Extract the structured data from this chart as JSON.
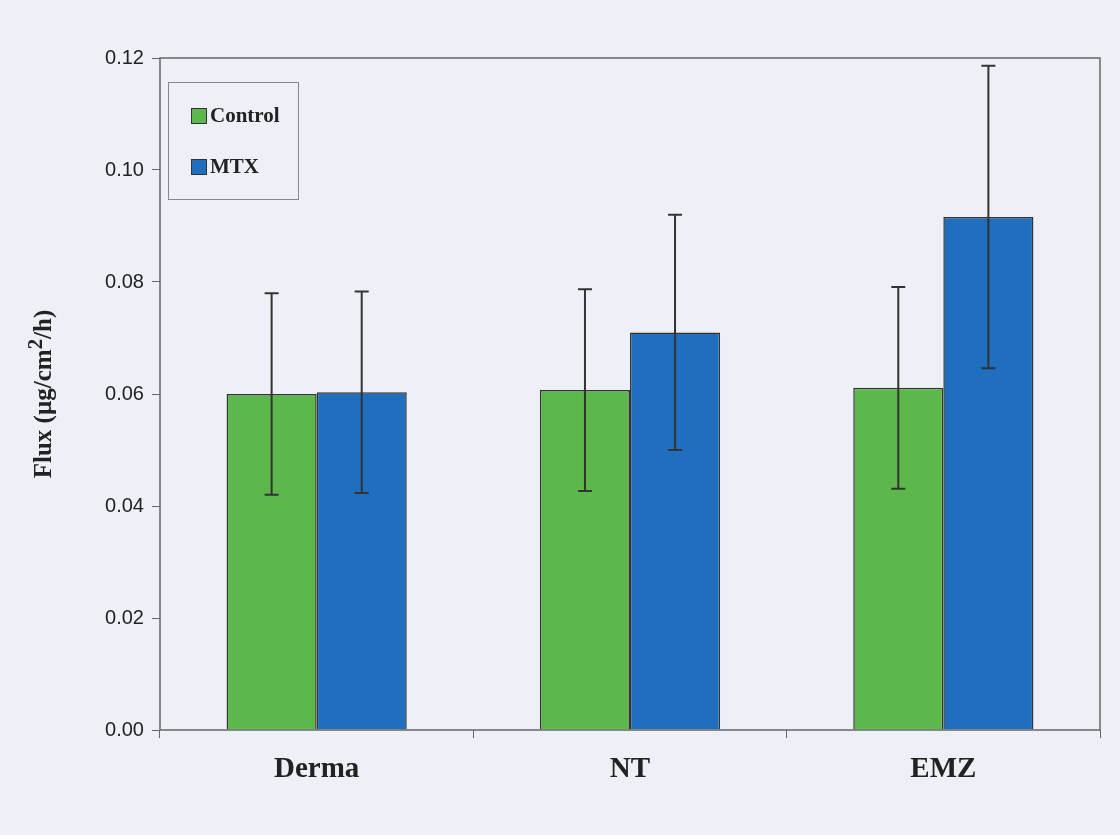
{
  "chart_data": {
    "type": "bar",
    "ylabel": "Flux (µg/cm$^{2}$/h)",
    "categories": [
      "Derma",
      "NT",
      "EMZ"
    ],
    "series": [
      {
        "name": "Control",
        "color": "#5cb84a",
        "values": [
          0.06,
          0.0607,
          0.0611
        ],
        "errors": [
          0.018,
          0.018,
          0.018
        ]
      },
      {
        "name": "MTX",
        "color": "#1f6fbe",
        "values": [
          0.0603,
          0.071,
          0.0916
        ],
        "errors": [
          0.018,
          0.021,
          0.027
        ]
      }
    ],
    "ylim": [
      0,
      0.12
    ],
    "yticks": [
      {
        "value": 0,
        "label": "0.00"
      },
      {
        "value": 0.02,
        "label": "0.02"
      },
      {
        "value": 0.04,
        "label": "0.04"
      },
      {
        "value": 0.06,
        "label": "0.06"
      },
      {
        "value": 0.08,
        "label": "0.08"
      },
      {
        "value": 0.1,
        "label": "0.10"
      },
      {
        "value": 0.12,
        "label": "0.12"
      }
    ],
    "legend": "top left",
    "grid": false
  }
}
